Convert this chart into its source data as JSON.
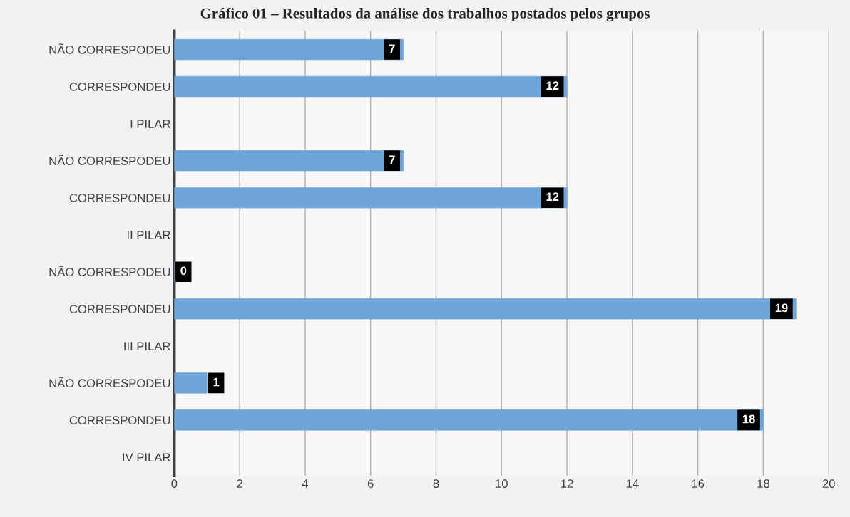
{
  "chart_data": {
    "type": "bar",
    "orientation": "horizontal",
    "title": "Gráfico 01 – Resultados da análise dos trabalhos postados pelos grupos",
    "categories": [
      "NÃO CORRESPODEU",
      "CORRESPONDEU",
      "I PILAR",
      "NÃO CORRESPODEU",
      "CORRESPONDEU",
      "II PILAR",
      "NÃO CORRESPODEU",
      "CORRESPONDEU",
      "III PILAR",
      "NÃO CORRESPODEU",
      "CORRESPONDEU",
      "IV PILAR"
    ],
    "values": [
      7,
      12,
      null,
      7,
      12,
      null,
      0,
      19,
      null,
      1,
      18,
      null
    ],
    "color": "#6fa6da",
    "xlim": [
      0,
      20
    ],
    "xticks": [
      0,
      2,
      4,
      6,
      8,
      10,
      12,
      14,
      16,
      18,
      20
    ],
    "grid": "x",
    "data_labels": true
  }
}
